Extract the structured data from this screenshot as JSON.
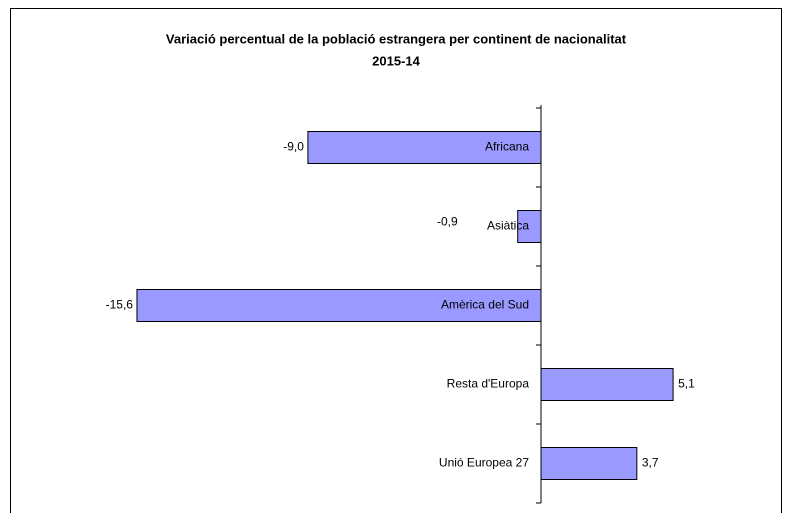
{
  "chart_data": {
    "type": "barh",
    "title": "Variació percentual de la població estrangera per continent de nacionalitat",
    "subtitle": "2015-14",
    "categories": [
      "Africana",
      "Asiàtica",
      "Amèrica del Sud",
      "Resta d'Europa",
      "Unió Europea 27"
    ],
    "values": [
      -9.0,
      -0.9,
      -15.6,
      5.1,
      3.7
    ],
    "value_labels": [
      "-9,0",
      "-0,9",
      "-15,6",
      "5,1",
      "3,7"
    ],
    "color": "#9999ff",
    "xlim": [
      -20,
      10
    ]
  }
}
